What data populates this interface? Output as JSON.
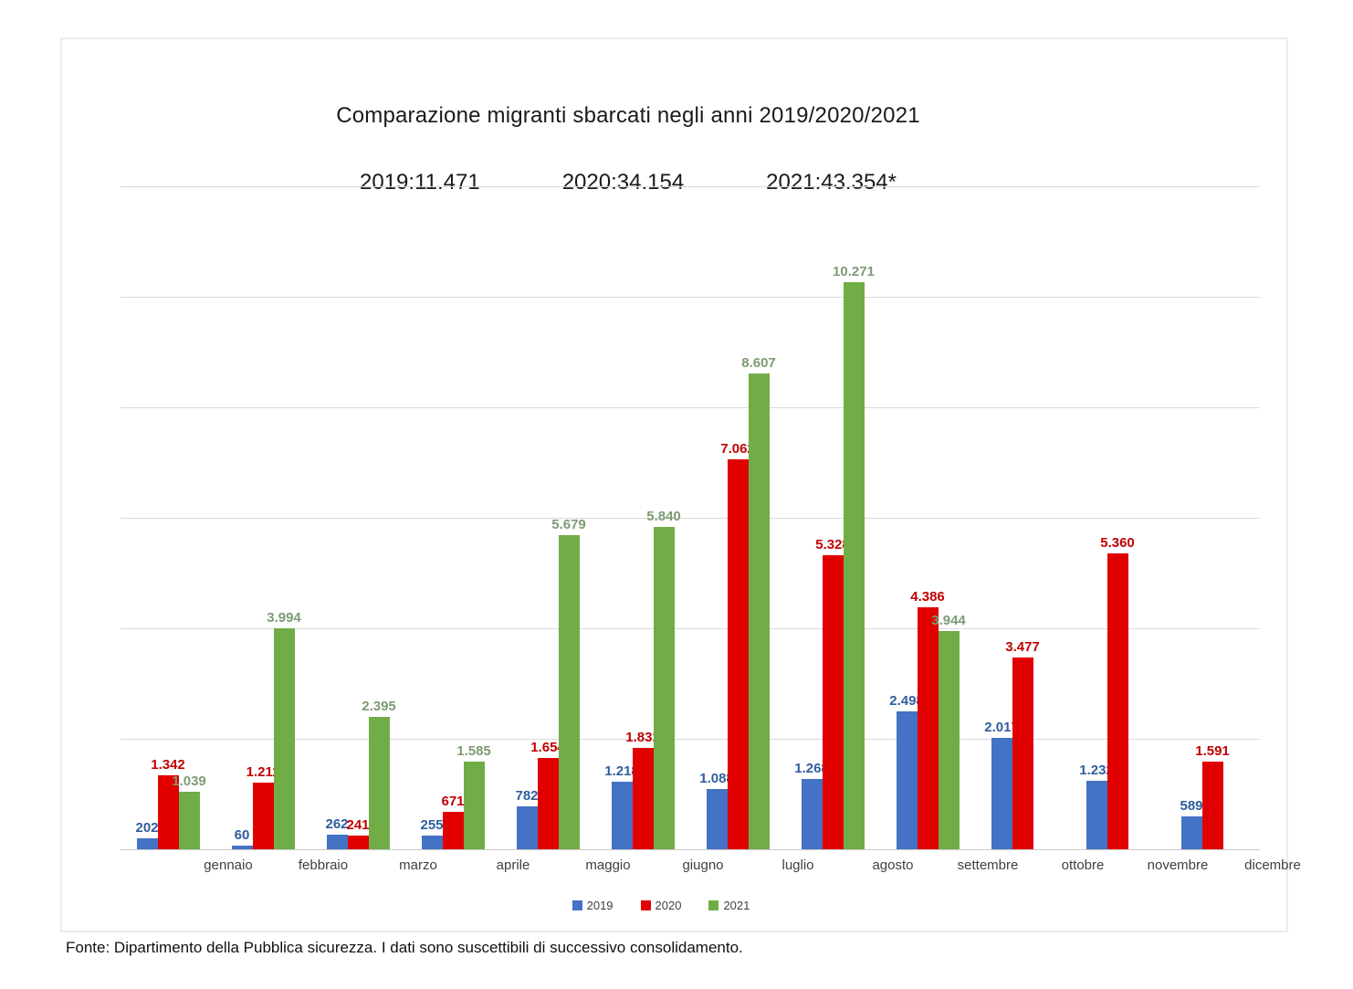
{
  "chart_data": {
    "type": "bar",
    "title": "Comparazione migranti sbarcati negli anni 2019/2020/2021",
    "totals": [
      "2019:11.471",
      "2020:34.154",
      "2021:43.354*"
    ],
    "categories": [
      "gennaio",
      "febbraio",
      "marzo",
      "aprile",
      "maggio",
      "giugno",
      "luglio",
      "agosto",
      "settembre",
      "ottobre",
      "novembre",
      "dicembre"
    ],
    "series": [
      {
        "name": "2019",
        "color": "#4472C4",
        "label_color": "#2F5D9E",
        "values": [
          202,
          60,
          262,
          255,
          782,
          1218,
          1088,
          1268,
          2498,
          2017,
          1232,
          589
        ],
        "labels": [
          "202",
          "60",
          "262",
          "255",
          "782",
          "1.218",
          "1.088",
          "1.268",
          "2.498",
          "2.017",
          "1.232",
          "589"
        ]
      },
      {
        "name": "2020",
        "color": "#E00000",
        "label_color": "#C00000",
        "values": [
          1342,
          1211,
          241,
          671,
          1654,
          1831,
          7062,
          5328,
          4386,
          3477,
          5360,
          1591
        ],
        "labels": [
          "1.342",
          "1.211",
          "241",
          "671",
          "1.654",
          "1.831",
          "7.062",
          "5.328",
          "4.386",
          "3.477",
          "5.360",
          "1.591"
        ]
      },
      {
        "name": "2021",
        "color": "#70AD47",
        "label_color": "#7D9B74",
        "values": [
          1039,
          3994,
          2395,
          1585,
          5679,
          5840,
          8607,
          10271,
          3944,
          null,
          null,
          null
        ],
        "labels": [
          "1.039",
          "3.994",
          "2.395",
          "1.585",
          "5.679",
          "5.840",
          "8.607",
          "10.271",
          "3.944",
          null,
          null,
          null
        ]
      }
    ],
    "ylim": [
      0,
      12000
    ],
    "grid_step": 2000,
    "grid": true,
    "legend_position": "bottom",
    "footer": "Fonte: Dipartimento della Pubblica sicurezza. I dati sono suscettibili di successivo consolidamento."
  }
}
